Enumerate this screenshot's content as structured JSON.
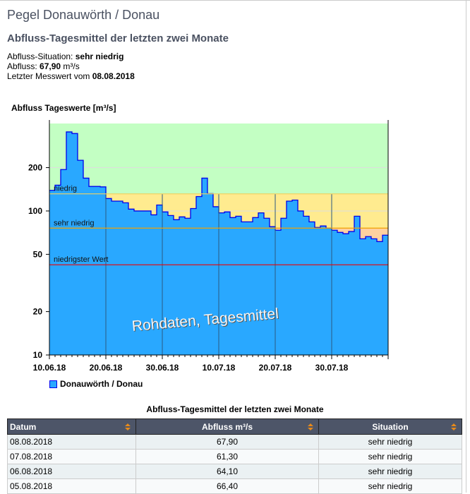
{
  "header": {
    "title": "Pegel Donauwörth / Donau",
    "subtitle": "Abfluss-Tagesmittel der letzten zwei Monate"
  },
  "info": {
    "situation_label": "Abfluss-Situation: ",
    "situation": "sehr niedrig",
    "flow_label": "Abfluss: ",
    "flow": "67,90",
    "flow_unit": " m³/s",
    "date_label": "Letzter Messwert vom ",
    "date": "08.08.2018"
  },
  "chart_data": {
    "type": "area",
    "title": "Abfluss Tageswerte [m³/s]",
    "yscale": "log",
    "ylim": [
      10,
      405
    ],
    "yticks": [
      10,
      20,
      50,
      100,
      200
    ],
    "xticks": [
      "10.06.18",
      "20.06.18",
      "30.06.18",
      "10.07.18",
      "20.07.18",
      "30.07.18"
    ],
    "start_date": "10.06.18",
    "days": 60,
    "series": [
      {
        "name": "Donauwörth / Donau",
        "color": "#29a8ff",
        "line_color": "#0000ee",
        "values": [
          139,
          151,
          194,
          354,
          345,
          225,
          169,
          148,
          148,
          147,
          122,
          117,
          117,
          114,
          103,
          100,
          100,
          100,
          94,
          110,
          98.5,
          93,
          87,
          91,
          89,
          104,
          126,
          169,
          132,
          107,
          97,
          98.5,
          90,
          92,
          84,
          84,
          90,
          97,
          89,
          77.8,
          73.5,
          89,
          117,
          119,
          100,
          92,
          84,
          76.9,
          78.7,
          76,
          73.5,
          71,
          69.5,
          72,
          92,
          64.1,
          66.4,
          64.1,
          61.3,
          67.9
        ]
      }
    ],
    "thresholds": [
      {
        "label": "niedrig",
        "value": 131.5,
        "color": "#f0d060"
      },
      {
        "label": "sehr niedrig",
        "value": 76,
        "color": "#f0a000"
      },
      {
        "label": "niedrigster Wert",
        "value": 42.3,
        "color": "#ee0000"
      }
    ],
    "bands": [
      {
        "from": 131.5,
        "to": 405,
        "color": "#c3ffc3"
      },
      {
        "from": 76,
        "to": 131.5,
        "color": "#ffeb8f"
      },
      {
        "from": 10,
        "to": 76,
        "color": "#ffd0a0"
      }
    ],
    "watermark": "Rohdaten, Tagesmittel"
  },
  "table": {
    "title": "Abfluss-Tagesmittel der letzten zwei Monate",
    "headers": [
      "Datum",
      "Abfluss m³/s",
      "Situation"
    ],
    "rows": [
      [
        "08.08.2018",
        "67,90",
        "sehr niedrig"
      ],
      [
        "07.08.2018",
        "61,30",
        "sehr niedrig"
      ],
      [
        "06.08.2018",
        "64,10",
        "sehr niedrig"
      ],
      [
        "05.08.2018",
        "66,40",
        "sehr niedrig"
      ]
    ]
  }
}
